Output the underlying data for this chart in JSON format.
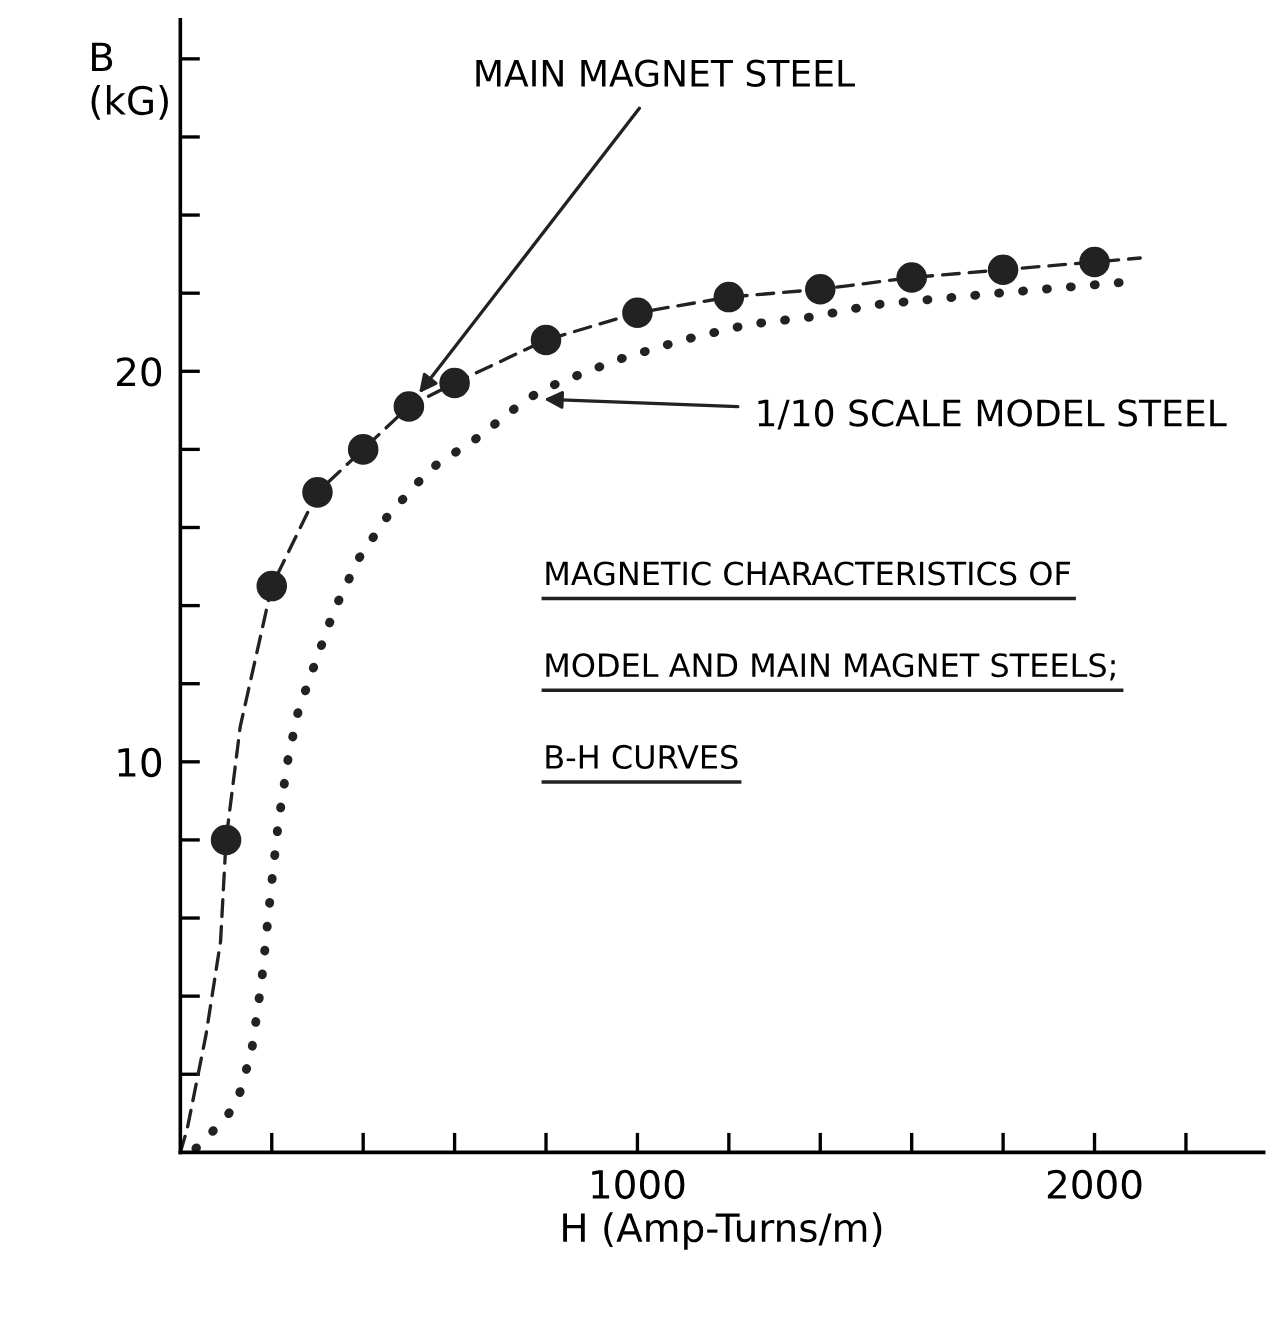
{
  "chart_data": {
    "type": "line",
    "xlabel": "H (Amp-Turns/m)",
    "ylabel": "B\n(kG)",
    "xlim": [
      0,
      2370
    ],
    "ylim": [
      0,
      29
    ],
    "xticks": [
      {
        "value": 200,
        "label": null
      },
      {
        "value": 400,
        "label": null
      },
      {
        "value": 600,
        "label": null
      },
      {
        "value": 800,
        "label": null
      },
      1000,
      {
        "value": 1200,
        "label": null
      },
      {
        "value": 1400,
        "label": null
      },
      {
        "value": 1600,
        "label": null
      },
      {
        "value": 1800,
        "label": null
      },
      2000,
      {
        "value": 2200,
        "label": null
      }
    ],
    "yticks": [
      {
        "value": 2,
        "label": null
      },
      {
        "value": 4,
        "label": null
      },
      {
        "value": 6,
        "label": null
      },
      {
        "value": 8,
        "label": null
      },
      10,
      {
        "value": 12,
        "label": null
      },
      {
        "value": 14,
        "label": null
      },
      {
        "value": 16,
        "label": null
      },
      {
        "value": 18,
        "label": null
      },
      20,
      {
        "value": 22,
        "label": null
      },
      {
        "value": 24,
        "label": null
      },
      {
        "value": 26,
        "label": null
      },
      {
        "value": 28,
        "label": null
      }
    ],
    "grid": false,
    "legend": false,
    "series": [
      {
        "line_style": "dashed",
        "marker": "none",
        "color": "#222222",
        "x": [
          0,
          15,
          56,
          88,
          100,
          131,
          200,
          300,
          400,
          500,
          600,
          800,
          1000,
          1200,
          1400,
          1600,
          1800,
          2000,
          2100
        ],
        "values": [
          0,
          0.6,
          3.0,
          5.4,
          8,
          10.9,
          14.5,
          16.9,
          18.0,
          19.1,
          19.7,
          20.8,
          21.5,
          21.9,
          22.1,
          22.4,
          22.6,
          22.8,
          22.9
        ]
      },
      {
        "type": "scatter",
        "marker": "circle",
        "name": "MAIN MAGNET STEEL",
        "color": "#222222",
        "x": [
          100,
          200,
          300,
          400,
          500,
          600,
          800,
          1000,
          1200,
          1400,
          1600,
          1800,
          2000
        ],
        "values": [
          8,
          14.5,
          16.9,
          18.0,
          19.1,
          19.7,
          20.8,
          21.5,
          21.9,
          22.1,
          22.4,
          22.6,
          22.8
        ]
      },
      {
        "line_style": "dotted",
        "marker": "none",
        "name": "1/10 SCALE MODEL STEEL",
        "color": "#222222",
        "x": [
          34,
          101,
          127,
          156,
          178,
          198,
          214,
          236,
          258,
          300,
          337,
          390,
          454,
          547,
          650,
          759,
          826,
          958,
          1099,
          1243,
          1387,
          1516,
          1789,
          2085
        ],
        "values": [
          0.1,
          0.9,
          1.4,
          2.6,
          4.4,
          6.7,
          8.4,
          10.1,
          11.3,
          12.7,
          13.9,
          15.2,
          16.3,
          17.5,
          18.3,
          19.3,
          19.7,
          20.3,
          20.8,
          21.2,
          21.4,
          21.7,
          22.0,
          22.3
        ]
      }
    ],
    "annotations": [
      "MAGNETIC CHARACTERISTICS OF",
      "MODEL AND MAIN MAGNET STEELS;",
      "B-H CURVES"
    ]
  }
}
